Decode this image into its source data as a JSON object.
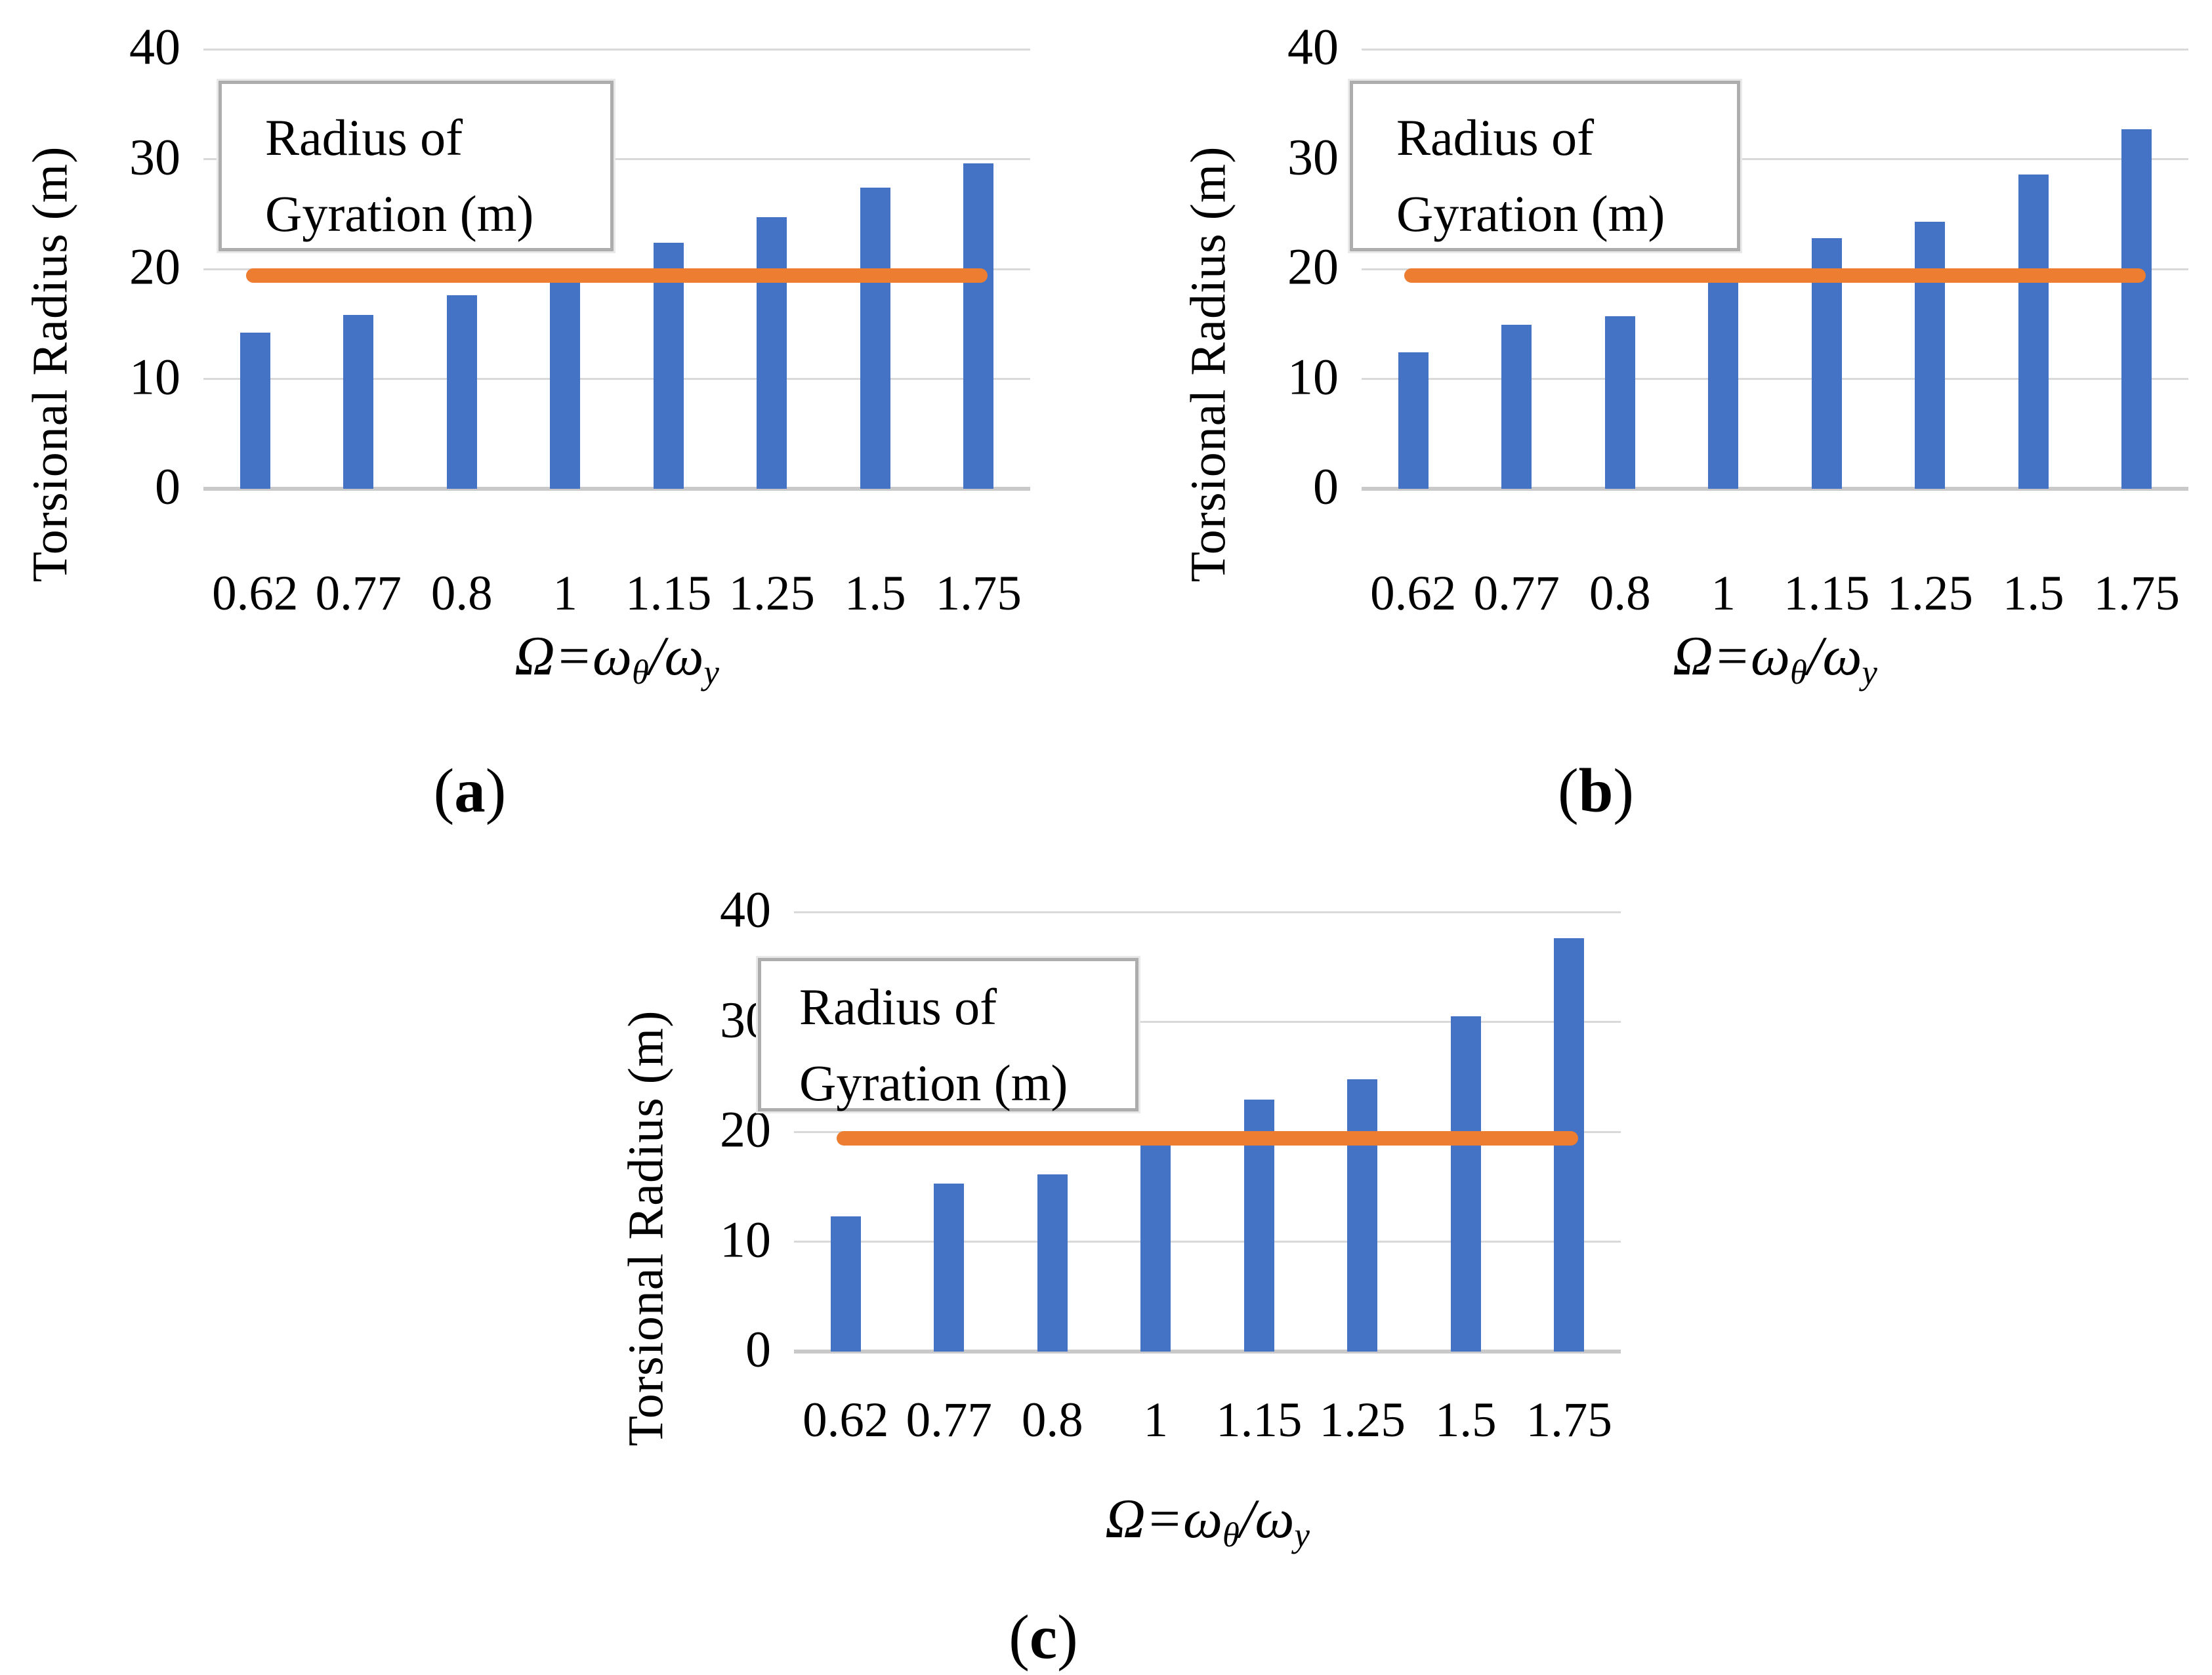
{
  "colors": {
    "bar": "#4472C4",
    "line": "#ED7D31",
    "gridline": "#D9D9D9",
    "axis_line": "#C9C9C9",
    "legend_border": "#ADADAD",
    "text": "#000000"
  },
  "legend": {
    "line1": "Radius of",
    "line2": "Gyration (m)"
  },
  "axes": {
    "ylabel": "Torsional Radius (m)",
    "yticks": [
      0,
      10,
      20,
      30,
      40
    ],
    "ylim": [
      0,
      40
    ],
    "xlabel_parts": {
      "omega_cap": "Ω",
      "equals": "=",
      "omega_lc1": "ω",
      "sub1": "θ",
      "slash": "/",
      "omega_lc2": "ω",
      "sub2": "y"
    }
  },
  "chart_data": [
    {
      "id": "a",
      "type": "bar",
      "title": "",
      "categories": [
        "0.62",
        "0.77",
        "0.8",
        "1",
        "1.15",
        "1.25",
        "1.5",
        "1.75"
      ],
      "series": [
        {
          "name": "Torsional Radius (m)",
          "type": "bar",
          "values": [
            14.2,
            15.8,
            17.6,
            19.0,
            22.4,
            24.7,
            27.4,
            29.6
          ]
        },
        {
          "name": "Radius of Gyration (m)",
          "type": "line",
          "values": [
            19.4,
            19.4,
            19.4,
            19.4,
            19.4,
            19.4,
            19.4,
            19.4
          ]
        }
      ],
      "xlabel": "Ω=ωθ/ωy",
      "ylabel": "Torsional Radius (m)",
      "ylim": [
        0,
        40
      ],
      "yticks": [
        0,
        10,
        20,
        30,
        40
      ],
      "legend": "Radius of Gyration (m)",
      "caption_open": "(",
      "caption_letter": "a",
      "caption_close": ")"
    },
    {
      "id": "b",
      "type": "bar",
      "title": "",
      "categories": [
        "0.62",
        "0.77",
        "0.8",
        "1",
        "1.15",
        "1.25",
        "1.5",
        "1.75"
      ],
      "series": [
        {
          "name": "Torsional Radius (m)",
          "type": "bar",
          "values": [
            12.4,
            14.9,
            15.7,
            19.0,
            22.8,
            24.3,
            28.6,
            32.7
          ]
        },
        {
          "name": "Radius of Gyration (m)",
          "type": "line",
          "values": [
            19.4,
            19.4,
            19.4,
            19.4,
            19.4,
            19.4,
            19.4,
            19.4
          ]
        }
      ],
      "xlabel": "Ω=ωθ/ωy",
      "ylabel": "Torsional Radius (m)",
      "ylim": [
        0,
        40
      ],
      "yticks": [
        0,
        10,
        20,
        30,
        40
      ],
      "legend": "Radius of Gyration (m)",
      "caption_open": "(",
      "caption_letter": "b",
      "caption_close": ")"
    },
    {
      "id": "c",
      "type": "bar",
      "title": "",
      "categories": [
        "0.62",
        "0.77",
        "0.8",
        "1",
        "1.15",
        "1.25",
        "1.5",
        "1.75"
      ],
      "series": [
        {
          "name": "Torsional Radius (m)",
          "type": "bar",
          "values": [
            12.3,
            15.3,
            16.1,
            19.0,
            22.9,
            24.8,
            30.5,
            37.6
          ]
        },
        {
          "name": "Radius of Gyration (m)",
          "type": "line",
          "values": [
            19.4,
            19.4,
            19.4,
            19.4,
            19.4,
            19.4,
            19.4,
            19.4
          ]
        }
      ],
      "xlabel": "Ω=ωθ/ωy",
      "ylabel": "Torsional Radius (m)",
      "ylim": [
        0,
        40
      ],
      "yticks": [
        0,
        10,
        20,
        30,
        40
      ],
      "legend": "Radius of Gyration (m)",
      "caption_open": "(",
      "caption_letter": "c",
      "caption_close": ")"
    }
  ]
}
